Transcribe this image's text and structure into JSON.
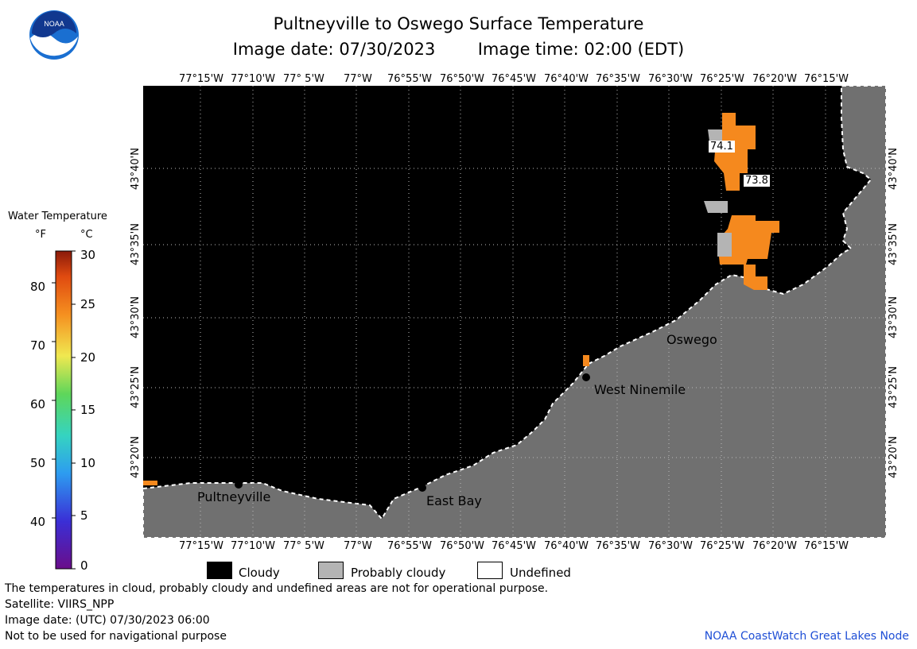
{
  "header": {
    "title": "Pultneyville to Oswego Surface Temperature",
    "image_date_label": "Image date: 07/30/2023",
    "image_time_label": "Image time: 02:00 (EDT)"
  },
  "logo": {
    "text": "NOAA"
  },
  "colorbar": {
    "title": "Water Temperature",
    "unit_f": "°F",
    "unit_c": "°C",
    "f_ticks": [
      "80",
      "70",
      "60",
      "50",
      "40"
    ],
    "c_ticks": [
      "30",
      "25",
      "20",
      "15",
      "10",
      "5",
      "0"
    ]
  },
  "map": {
    "lon_ticks": [
      "77°15'W",
      "77°10'W",
      "77° 5'W",
      "77°W",
      "76°55'W",
      "76°50'W",
      "76°45'W",
      "76°40'W",
      "76°35'W",
      "76°30'W",
      "76°25'W",
      "76°20'W",
      "76°15'W"
    ],
    "lat_ticks": [
      "43°40'N",
      "43°35'N",
      "43°30'N",
      "43°25'N",
      "43°20'N"
    ],
    "places": [
      "Pultneyville",
      "East Bay",
      "West Ninemile",
      "Oswego"
    ],
    "temp_labels": [
      "74.1",
      "73.8"
    ],
    "colors": {
      "cloud": "#000000",
      "land": "#707070",
      "probably_cloudy": "#b4b4b4",
      "water_warm": "#f5891e"
    }
  },
  "legend": {
    "cloudy": "Cloudy",
    "probably_cloudy": "Probably cloudy",
    "undefined": "Undefined"
  },
  "footer": {
    "note": "The temperatures in cloud, probably cloudy and undefined areas are not for operational purpose.",
    "satellite": "Satellite: VIIRS_NPP",
    "utc_date": "Image date: (UTC) 07/30/2023  06:00",
    "nav": "Not to be used for navigational purpose",
    "credit": "NOAA CoastWatch Great Lakes Node"
  }
}
